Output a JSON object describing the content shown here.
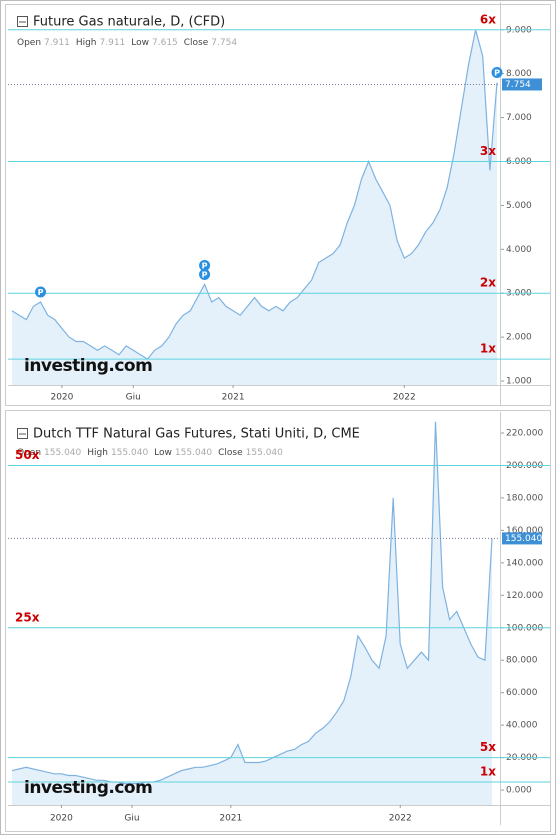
{
  "chart_data": [
    {
      "type": "area",
      "title": "Future Gas naturale, D, (CFD)",
      "ohlc": [
        {
          "name": "Open",
          "value": 7.911,
          "label": "7.911"
        },
        {
          "name": "High",
          "value": 7.911,
          "label": "7.911"
        },
        {
          "name": "Low",
          "value": 7.615,
          "label": "7.615"
        },
        {
          "name": "Close",
          "value": 7.754,
          "label": "7.754"
        }
      ],
      "categories": [
        null,
        null,
        null,
        null,
        null,
        null,
        null,
        "2020",
        null,
        null,
        null,
        null,
        null,
        null,
        null,
        null,
        null,
        "Giu",
        null,
        null,
        null,
        null,
        null,
        null,
        null,
        null,
        null,
        null,
        null,
        null,
        null,
        "2021",
        null,
        null,
        null,
        null,
        null,
        null,
        null,
        null,
        null,
        null,
        null,
        null,
        null,
        null,
        null,
        null,
        null,
        null,
        null,
        null,
        null,
        null,
        null,
        "2022",
        null,
        null,
        null,
        null,
        null,
        null,
        null,
        null,
        null,
        null,
        null,
        null,
        null
      ],
      "values": [
        2.6,
        2.5,
        2.4,
        2.7,
        2.8,
        2.5,
        2.4,
        2.2,
        2.0,
        1.9,
        1.9,
        1.8,
        1.7,
        1.8,
        1.7,
        1.6,
        1.8,
        1.7,
        1.6,
        1.5,
        1.7,
        1.8,
        2.0,
        2.3,
        2.5,
        2.6,
        2.9,
        3.2,
        2.8,
        2.9,
        2.7,
        2.6,
        2.5,
        2.7,
        2.9,
        2.7,
        2.6,
        2.7,
        2.6,
        2.8,
        2.9,
        3.1,
        3.3,
        3.7,
        3.8,
        3.9,
        4.1,
        4.6,
        5.0,
        5.6,
        6.0,
        5.6,
        5.3,
        5.0,
        4.2,
        3.8,
        3.9,
        4.1,
        4.4,
        4.6,
        4.9,
        5.4,
        6.2,
        7.2,
        8.2,
        9.0,
        8.4,
        5.8,
        7.8
      ],
      "color": "#7fb2e0",
      "fill": "#e4f1fa",
      "ylim": [
        0.91,
        9.45
      ],
      "yticks": [
        {
          "value": 1,
          "label": "1.000"
        },
        {
          "value": 2,
          "label": "2.000"
        },
        {
          "value": 3,
          "label": "3.000"
        },
        {
          "value": 4,
          "label": "4.000"
        },
        {
          "value": 5,
          "label": "5.000"
        },
        {
          "value": 6,
          "label": "6.000"
        },
        {
          "value": 7,
          "label": "7.000"
        },
        {
          "value": 8,
          "label": "8.000"
        },
        {
          "value": 9,
          "label": "9.000"
        }
      ],
      "reference_lines": [
        {
          "value": 9,
          "label": "6x"
        },
        {
          "value": 6,
          "label": "3x"
        },
        {
          "value": 3,
          "label": "2x"
        },
        {
          "value": 1.5,
          "label": "1x"
        }
      ],
      "reference_color": "#5fd3e0",
      "current_price": {
        "value": 7.754,
        "label": "7.754"
      },
      "event_markers": [
        "P",
        "P",
        "P",
        "P"
      ],
      "logo": "investing.com"
    },
    {
      "type": "area",
      "title": "Dutch TTF Natural Gas Futures, Stati Uniti, D, CME",
      "ohlc": [
        {
          "name": "Open",
          "value": 155.04,
          "label": "155.040"
        },
        {
          "name": "High",
          "value": 155.04,
          "label": "155.040"
        },
        {
          "name": "Low",
          "value": 155.04,
          "label": "155.040"
        },
        {
          "name": "Close",
          "value": 155.04,
          "label": "155.040"
        }
      ],
      "categories": [
        null,
        null,
        null,
        null,
        null,
        null,
        null,
        "2020",
        null,
        null,
        null,
        null,
        null,
        null,
        null,
        null,
        null,
        "Giu",
        null,
        null,
        null,
        null,
        null,
        null,
        null,
        null,
        null,
        null,
        null,
        null,
        null,
        "2021",
        null,
        null,
        null,
        null,
        null,
        null,
        null,
        null,
        null,
        null,
        null,
        null,
        null,
        null,
        null,
        null,
        null,
        null,
        null,
        null,
        null,
        null,
        null,
        "2022",
        null,
        null,
        null,
        null,
        null,
        null,
        null,
        null,
        null,
        null,
        null,
        null,
        null
      ],
      "values": [
        12,
        13,
        14,
        13,
        12,
        11,
        10,
        10,
        9,
        9,
        8,
        7,
        6,
        6,
        5,
        5,
        4,
        4,
        4,
        5,
        5,
        6,
        8,
        10,
        12,
        13,
        14,
        14,
        15,
        16,
        18,
        20,
        28,
        17,
        17,
        17,
        18,
        20,
        22,
        24,
        25,
        28,
        30,
        35,
        38,
        42,
        48,
        55,
        70,
        95,
        88,
        80,
        75,
        95,
        180,
        90,
        75,
        80,
        85,
        80,
        227,
        125,
        105,
        110,
        100,
        90,
        82,
        80,
        155
      ],
      "color": "#7fb2e0",
      "fill": "#e4f1fa",
      "ylim": [
        -9.2,
        228
      ],
      "yticks": [
        {
          "value": 0,
          "label": "0.000"
        },
        {
          "value": 20,
          "label": "20.000"
        },
        {
          "value": 40,
          "label": "40.000"
        },
        {
          "value": 60,
          "label": "60.000"
        },
        {
          "value": 80,
          "label": "80.000"
        },
        {
          "value": 100,
          "label": "100.000"
        },
        {
          "value": 120,
          "label": "120.000"
        },
        {
          "value": 140,
          "label": "140.000"
        },
        {
          "value": 160,
          "label": "160.000"
        },
        {
          "value": 180,
          "label": "180.000"
        },
        {
          "value": 200,
          "label": "200.000"
        },
        {
          "value": 220,
          "label": "220.000"
        }
      ],
      "reference_lines": [
        {
          "value": 200,
          "label": "50x"
        },
        {
          "value": 100,
          "label": "25x"
        },
        {
          "value": 20,
          "label": "5x"
        },
        {
          "value": 5,
          "label": "1x"
        }
      ],
      "reference_color": "#5fd3e0",
      "current_price": {
        "value": 155.04,
        "label": "155.040"
      },
      "logo": "investing.com"
    }
  ]
}
